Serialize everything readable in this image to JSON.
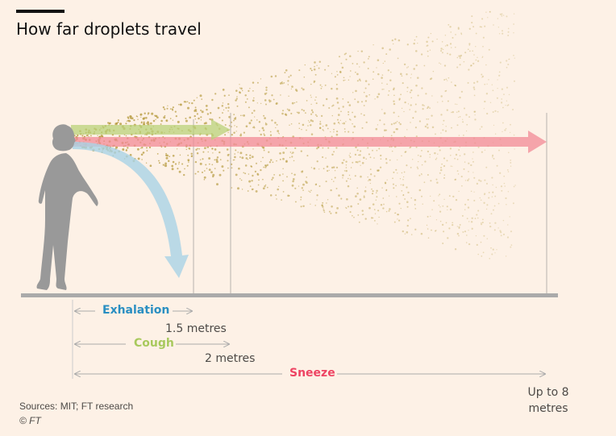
{
  "title": "How far droplets travel",
  "labels": {
    "exhalation": "Exhalation",
    "cough": "Cough",
    "sneeze": "Sneeze",
    "exhalation_distance": "1.5 metres",
    "cough_distance": "2 metres",
    "sneeze_distance": "Up to 8 metres"
  },
  "footer": {
    "source": "Sources: MIT; FT research",
    "copyright": "© FT"
  },
  "colors": {
    "background": "#fdf1e6",
    "exhalation": "#2a8fc2",
    "cough": "#a8c95d",
    "sneeze": "#ee4463",
    "droplets": "#b59a3c",
    "figure": "#999999"
  }
}
